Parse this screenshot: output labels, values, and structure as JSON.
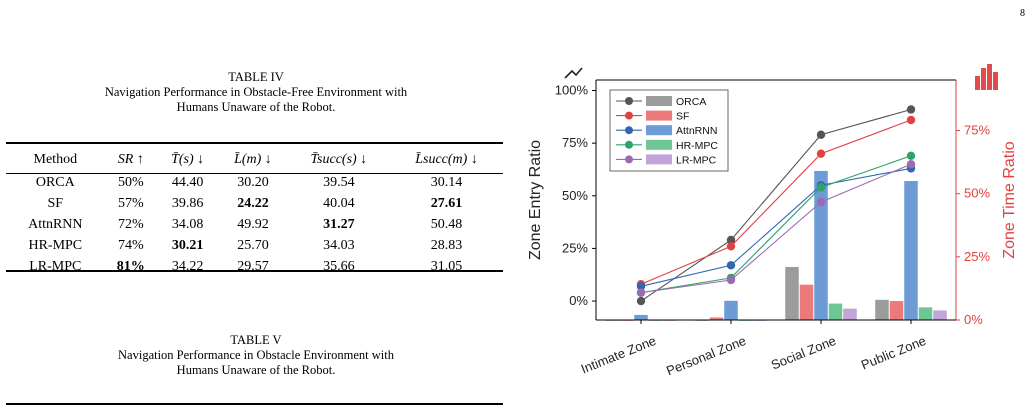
{
  "page_number": "8",
  "table4": {
    "label": "TABLE IV",
    "caption_line1": "Navigation Performance in Obstacle-Free Environment with",
    "caption_line2": "Humans Unaware of the Robot.",
    "headers": [
      "Method",
      "SR ↑",
      "T̄(s) ↓",
      "L̄(m) ↓",
      "T̄succ(s) ↓",
      "L̄succ(m) ↓"
    ],
    "rows": [
      {
        "method": "ORCA",
        "sr": "50%",
        "t": "44.40",
        "l": "30.20",
        "ts": "39.54",
        "ls": "30.14"
      },
      {
        "method": "SF",
        "sr": "57%",
        "t": "39.86",
        "l": "24.22",
        "ts": "40.04",
        "ls": "27.61"
      },
      {
        "method": "AttnRNN",
        "sr": "72%",
        "t": "34.08",
        "l": "49.92",
        "ts": "31.27",
        "ls": "50.48"
      },
      {
        "method": "HR-MPC",
        "sr": "74%",
        "t": "30.21",
        "l": "25.70",
        "ts": "34.03",
        "ls": "28.83"
      },
      {
        "method": "LR-MPC",
        "sr": "81%",
        "t": "34.22",
        "l": "29.57",
        "ts": "35.66",
        "ls": "31.05"
      }
    ]
  },
  "table5": {
    "label": "TABLE V",
    "caption_line1": "Navigation Performance in Obstacle Environment with",
    "caption_line2": "Humans Unaware of the Robot."
  },
  "chart_data": {
    "type": "bar+line",
    "categories": [
      "Intimate Zone",
      "Personal Zone",
      "Social Zone",
      "Public Zone"
    ],
    "ylabel_left": "Zone Entry Ratio",
    "ylabel_right": "Zone Time Ratio",
    "left_ticks": [
      "0%",
      "25%",
      "50%",
      "75%",
      "100%"
    ],
    "right_ticks": [
      "0%",
      "25%",
      "50%",
      "75%"
    ],
    "left_ylim": [
      -0.09,
      1.05
    ],
    "right_ylim": [
      0,
      0.95
    ],
    "legend": [
      "ORCA",
      "SF",
      "AttnRNN",
      "HR-MPC",
      "LR-MPC"
    ],
    "colors": [
      "#555555",
      "#e14141",
      "#2f67b1",
      "#2ea36a",
      "#9a6bb3"
    ],
    "bar_colors": [
      "#9c9c9c",
      "#ec7a7a",
      "#6c9bd6",
      "#6cc794",
      "#c1a4d8"
    ],
    "right_axis_color": "#e34040",
    "series": [
      {
        "name": "ORCA",
        "entry_ratio": [
          0.0,
          0.29,
          0.79,
          0.91
        ],
        "time_ratio": [
          0.0,
          0.0,
          0.21,
          0.08
        ]
      },
      {
        "name": "SF",
        "entry_ratio": [
          0.08,
          0.26,
          0.7,
          0.86
        ],
        "time_ratio": [
          0.0,
          0.01,
          0.14,
          0.075
        ]
      },
      {
        "name": "AttnRNN",
        "entry_ratio": [
          0.07,
          0.17,
          0.55,
          0.63
        ],
        "time_ratio": [
          0.02,
          0.076,
          0.59,
          0.55
        ]
      },
      {
        "name": "HR-MPC",
        "entry_ratio": [
          0.04,
          0.11,
          0.54,
          0.69
        ],
        "time_ratio": [
          0.0,
          0.0,
          0.065,
          0.05
        ]
      },
      {
        "name": "LR-MPC",
        "entry_ratio": [
          0.04,
          0.1,
          0.47,
          0.65
        ],
        "time_ratio": [
          0.0,
          0.0,
          0.045,
          0.038
        ]
      }
    ]
  }
}
